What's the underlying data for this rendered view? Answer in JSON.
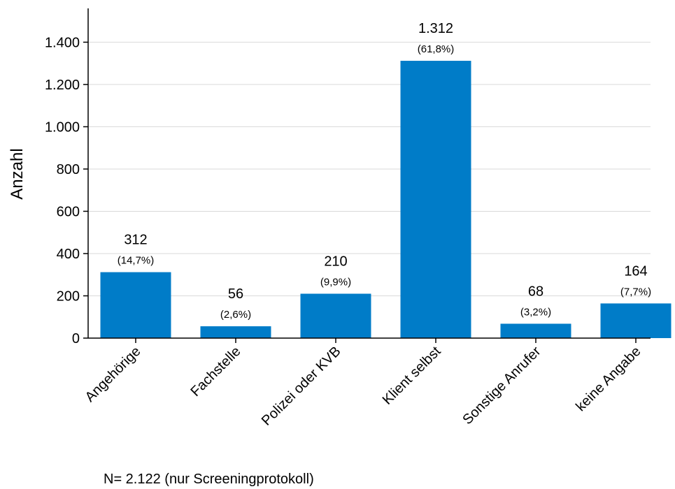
{
  "chart_data": {
    "type": "bar",
    "categories": [
      "Angehörige",
      "Fachstelle",
      "Polizei oder KVB",
      "Klient selbst",
      "Sonstige Anrufer",
      "keine Angabe"
    ],
    "values": [
      312,
      56,
      210,
      1312,
      68,
      164
    ],
    "value_labels": [
      "312",
      "56",
      "210",
      "1.312",
      "68",
      "164"
    ],
    "percent_labels": [
      "(14,7%)",
      "(2,6%)",
      "(9,9%)",
      "(61,8%)",
      "(3,2%)",
      "(7,7%)"
    ],
    "ylabel": "Anzahl",
    "ylim": [
      0,
      1560
    ],
    "yticks": [
      0,
      200,
      400,
      600,
      800,
      1000,
      1200,
      1400
    ],
    "ytick_labels": [
      "0",
      "200",
      "400",
      "600",
      "800",
      "1.000",
      "1.200",
      "1.400"
    ],
    "grid": true,
    "bar_color": "#007cc8",
    "grid_color": "#d9d9d9"
  },
  "footnote": "N= 2.122 (nur Screeningprotokoll)"
}
